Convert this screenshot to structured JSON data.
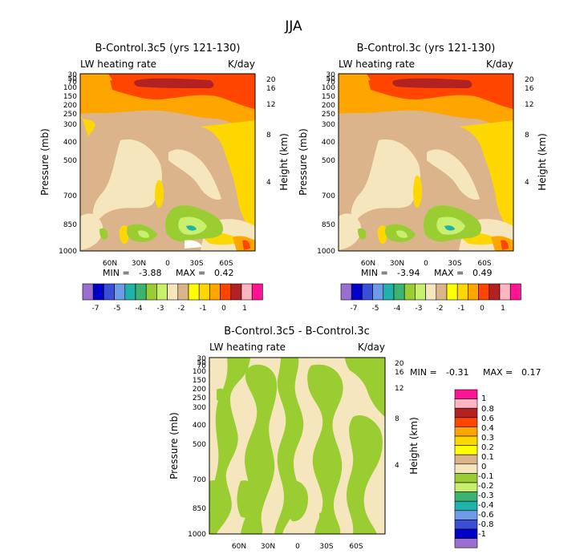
{
  "chart_data": [
    {
      "type": "heatmap",
      "season": "JJA",
      "title": "B-Control.3c5 (yrs 121-130)",
      "left_label": "LW heating rate",
      "right_label": "K/day",
      "ylabel": "Pressure (mb)",
      "y2label": "Height (km)",
      "pressure_ticks": [
        "30",
        "50",
        "70",
        "100",
        "150",
        "200",
        "250",
        "300",
        "400",
        "500",
        "700",
        "850",
        "1000"
      ],
      "pressure_values": [
        30,
        50,
        70,
        100,
        150,
        200,
        250,
        300,
        400,
        500,
        700,
        850,
        1000
      ],
      "height_ticks": [
        "20",
        "16",
        "12",
        "8",
        "4"
      ],
      "height_values": [
        20,
        16,
        12,
        8,
        4
      ],
      "lat_ticks": [
        "60N",
        "30N",
        "0",
        "30S",
        "60S"
      ],
      "lat_values": [
        60,
        30,
        0,
        -30,
        -60
      ],
      "xlim": [
        90,
        -90
      ],
      "min_label": "MIN =",
      "min_value": "-3.88",
      "max_label": "MAX =",
      "max_value": "0.42",
      "colorbar_labels": [
        "-7",
        "-5",
        "-4",
        "-3",
        "-2",
        "-1",
        "0",
        "1"
      ],
      "colorbar_colors": [
        "#9a6fd0",
        "#0000c8",
        "#3a4fd6",
        "#6f9ae8",
        "#20b2aa",
        "#3cb371",
        "#9acd32",
        "#c8f06e",
        "#f5e6bd",
        "#dcb48c",
        "#ffff00",
        "#ffd700",
        "#ffa500",
        "#ff4500",
        "#b22222",
        "#ffb6c1",
        "#ff1493"
      ]
    },
    {
      "type": "heatmap",
      "title": "B-Control.3c (yrs 121-130)",
      "left_label": "LW heating rate",
      "right_label": "K/day",
      "ylabel": "Pressure (mb)",
      "y2label": "Height (km)",
      "pressure_ticks": [
        "30",
        "50",
        "70",
        "100",
        "150",
        "200",
        "250",
        "300",
        "400",
        "500",
        "700",
        "850",
        "1000"
      ],
      "height_ticks": [
        "20",
        "16",
        "12",
        "8",
        "4"
      ],
      "lat_ticks": [
        "60N",
        "30N",
        "0",
        "30S",
        "60S"
      ],
      "xlim": [
        90,
        -90
      ],
      "min_label": "MIN =",
      "min_value": "-3.94",
      "max_label": "MAX =",
      "max_value": "0.49",
      "colorbar_labels": [
        "-7",
        "-5",
        "-4",
        "-3",
        "-2",
        "-1",
        "0",
        "1"
      ]
    },
    {
      "type": "heatmap",
      "title": "B-Control.3c5 - B-Control.3c",
      "left_label": "LW heating rate",
      "right_label": "K/day",
      "ylabel": "Pressure (mb)",
      "y2label": "Height (km)",
      "pressure_ticks": [
        "30",
        "50",
        "70",
        "100",
        "150",
        "200",
        "250",
        "300",
        "400",
        "500",
        "700",
        "850",
        "1000"
      ],
      "height_ticks": [
        "20",
        "16",
        "12",
        "8",
        "4"
      ],
      "lat_ticks": [
        "60N",
        "30N",
        "0",
        "30S",
        "60S"
      ],
      "xlim": [
        90,
        -90
      ],
      "min_label": "MIN =",
      "min_value": "-0.31",
      "max_label": "MAX =",
      "max_value": "0.17",
      "colorbar_labels": [
        "1",
        "0.8",
        "0.6",
        "0.4",
        "0.3",
        "0.2",
        "0.1",
        "0",
        "-0.1",
        "-0.2",
        "-0.3",
        "-0.4",
        "-0.6",
        "-0.8",
        "-1"
      ],
      "colorbar_colors": [
        "#ff1493",
        "#ffb6c1",
        "#b22222",
        "#ff4500",
        "#ffa500",
        "#ffd700",
        "#ffff00",
        "#dcb48c",
        "#f5e6bd",
        "#9acd32",
        "#c8f06e",
        "#3cb371",
        "#20b2aa",
        "#6f9ae8",
        "#3a4fd6",
        "#0000c8",
        "#9a6fd0"
      ]
    }
  ]
}
